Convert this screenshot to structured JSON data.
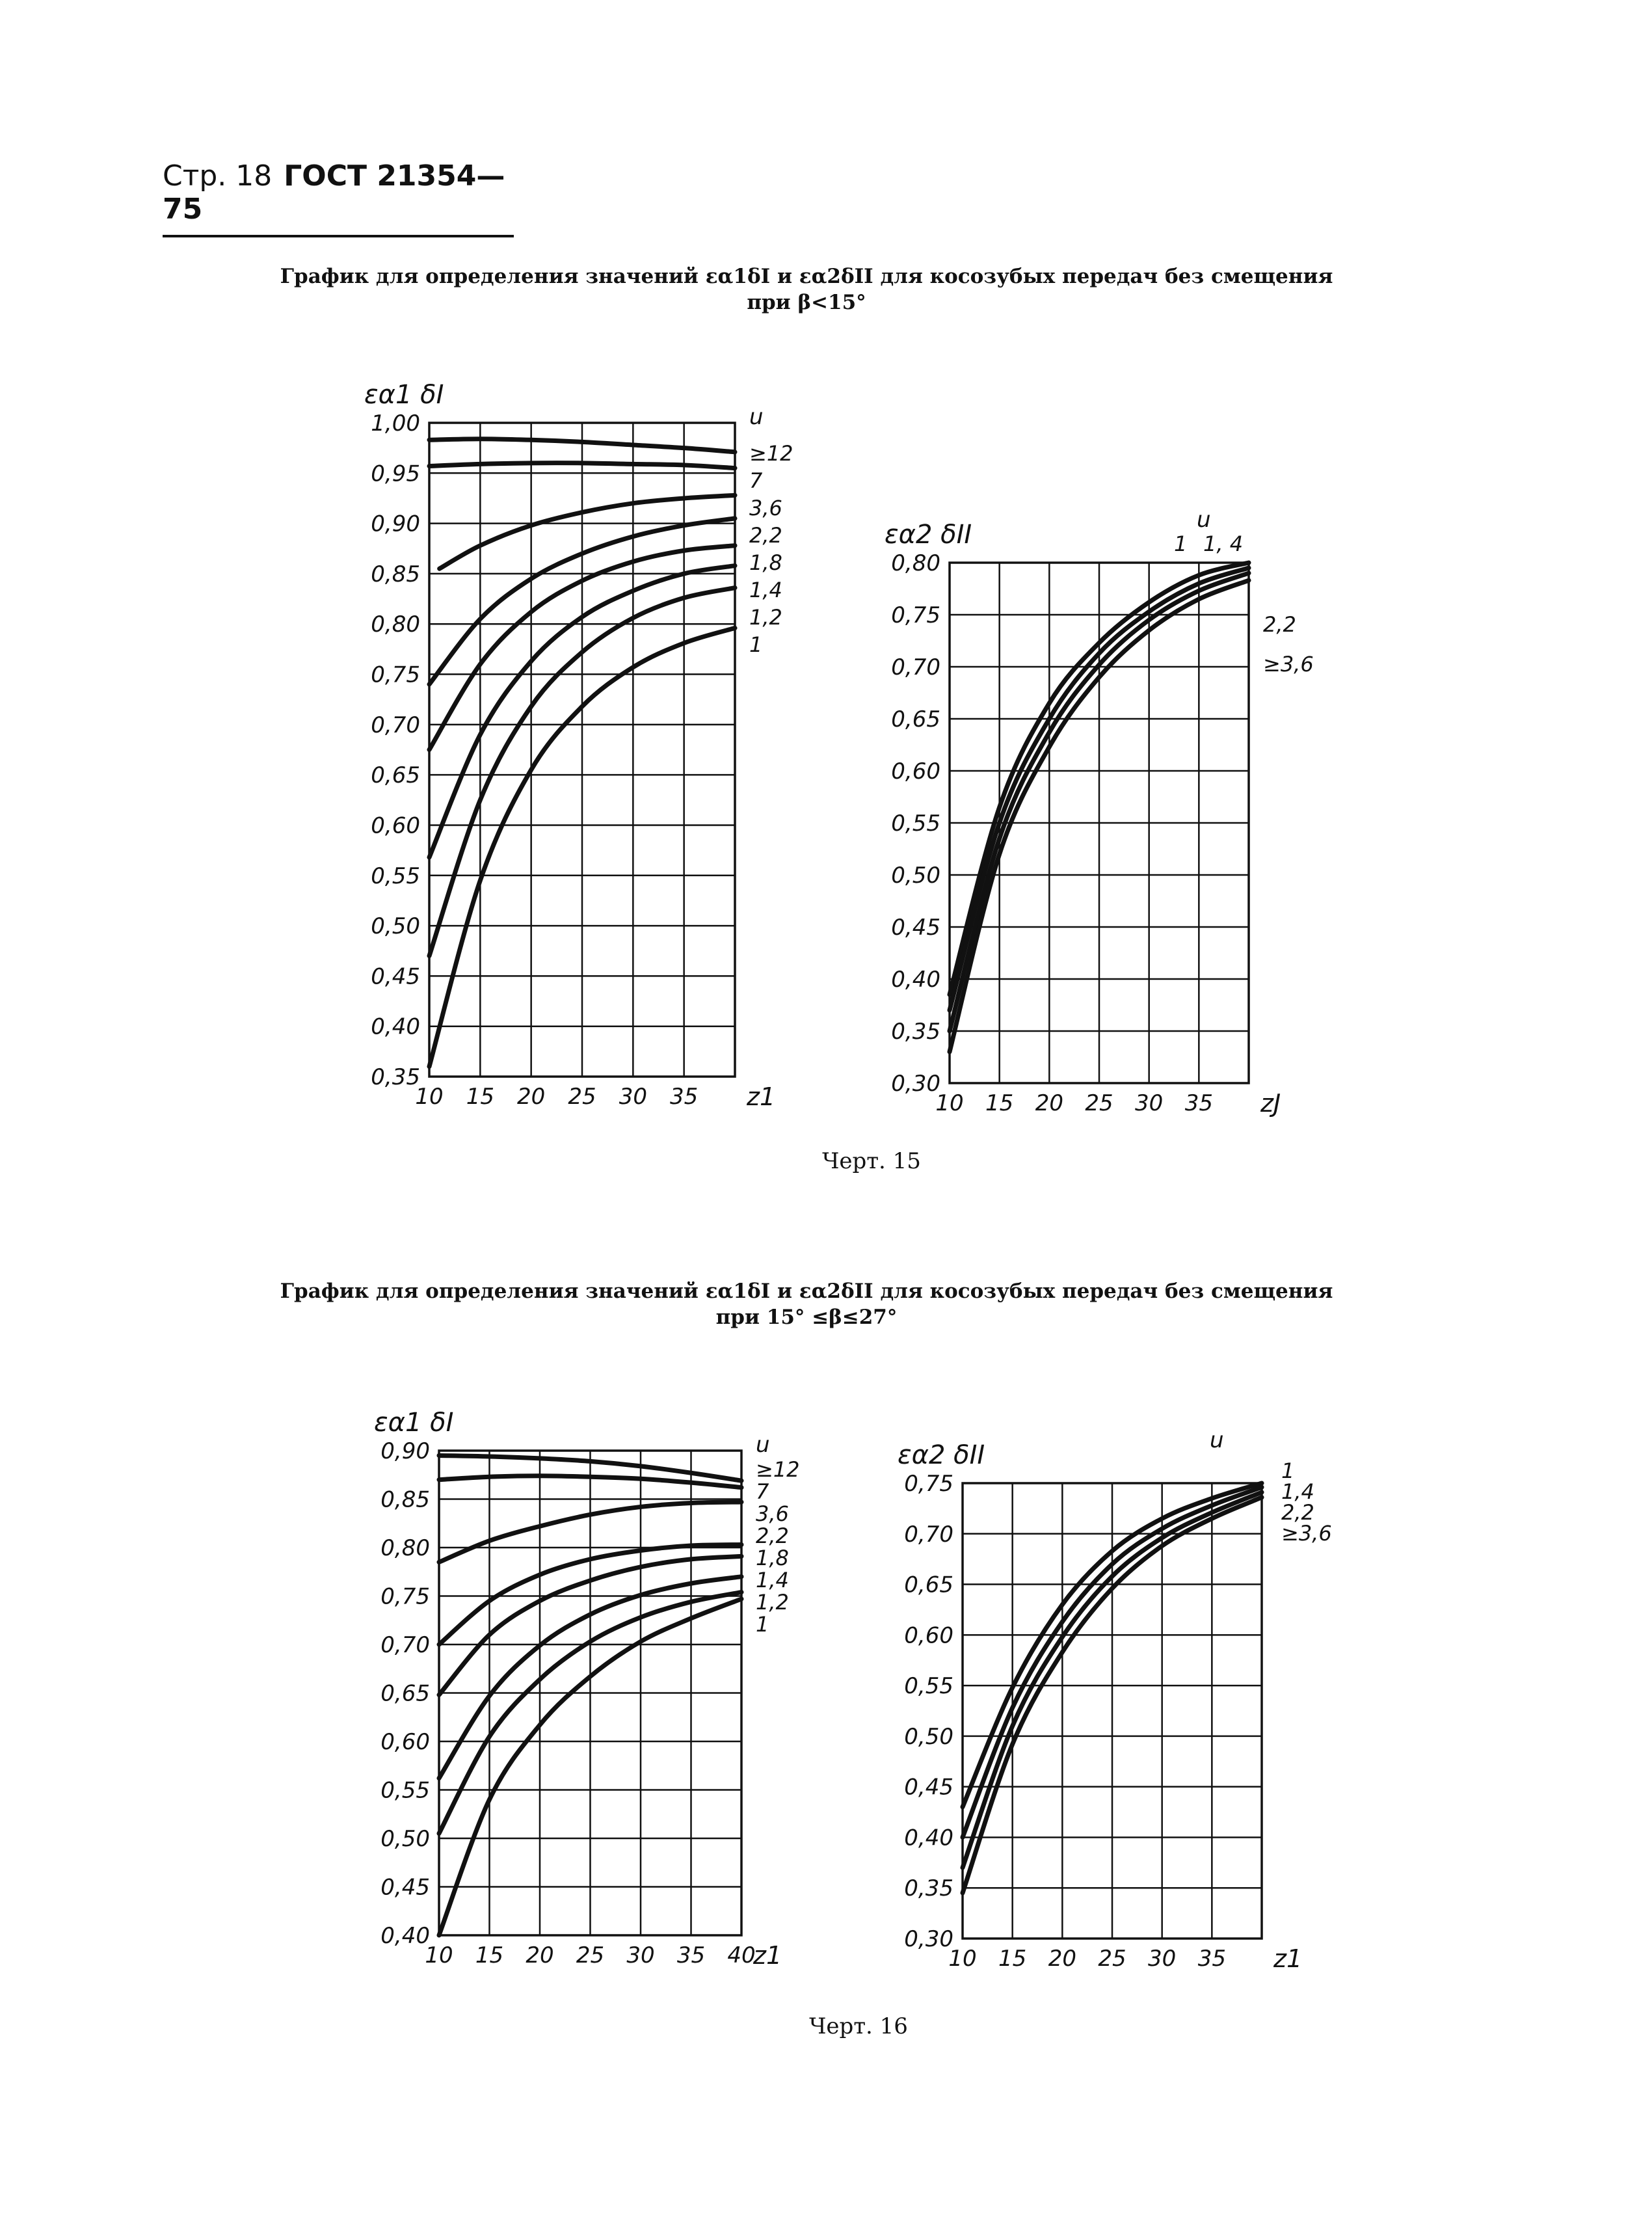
{
  "header": {
    "page_label": "Стр. 18",
    "gost_label": "ГОСТ 21354—75"
  },
  "captions": {
    "top_line1": "График для определения значений εα1δI и εα2δII для косозубых передач без смещения",
    "top_line2": "при β<15°",
    "bottom_line1": "График для определения значений εα1δI и εα2δII для косозубых передач без смещения",
    "bottom_line2": "при 15° ≤β≤27°"
  },
  "chart_labels": {
    "fig15": "Черт. 15",
    "fig16": "Черт. 16"
  },
  "chart_data": [
    {
      "id": "c15a",
      "type": "line",
      "figure": "Черт. 15",
      "ylabel": "εα1 δI",
      "xlabel": "z1",
      "legend_title": "u",
      "xlim": [
        10,
        40
      ],
      "ylim": [
        0.35,
        1.0
      ],
      "x_ticks": [
        10,
        15,
        20,
        25,
        30,
        35
      ],
      "y_ticks": [
        0.35,
        0.4,
        0.45,
        0.5,
        0.55,
        0.6,
        0.65,
        0.7,
        0.75,
        0.8,
        0.85,
        0.9,
        0.95,
        1.0
      ],
      "y_tick_labels": [
        "0,35",
        "0,40",
        "0,45",
        "0,50",
        "0,55",
        "0,60",
        "0,65",
        "0,70",
        "0,75",
        "0,80",
        "0,85",
        "0,90",
        "0,95",
        "1,00"
      ],
      "grid": true,
      "x": [
        10,
        15,
        20,
        25,
        30,
        35,
        40
      ],
      "series": [
        {
          "name": "≥12",
          "x": [
            10,
            15,
            20,
            25,
            30,
            35,
            40
          ],
          "values": [
            0.983,
            0.984,
            0.983,
            0.981,
            0.978,
            0.975,
            0.971
          ]
        },
        {
          "name": "7",
          "x": [
            10,
            15,
            20,
            25,
            30,
            35,
            40
          ],
          "values": [
            0.957,
            0.959,
            0.96,
            0.96,
            0.959,
            0.958,
            0.955
          ]
        },
        {
          "name": "3,6",
          "x": [
            11,
            15,
            20,
            25,
            30,
            35,
            40
          ],
          "values": [
            0.855,
            0.878,
            0.898,
            0.911,
            0.92,
            0.925,
            0.928
          ]
        },
        {
          "name": "2,2",
          "x": [
            10,
            15,
            20,
            25,
            30,
            35,
            40
          ],
          "values": [
            0.74,
            0.805,
            0.845,
            0.87,
            0.887,
            0.898,
            0.905
          ]
        },
        {
          "name": "1,8",
          "x": [
            10,
            15,
            20,
            25,
            30,
            35,
            40
          ],
          "values": [
            0.675,
            0.76,
            0.812,
            0.843,
            0.862,
            0.873,
            0.878
          ]
        },
        {
          "name": "1,4",
          "x": [
            10,
            15,
            20,
            25,
            30,
            35,
            40
          ],
          "values": [
            0.568,
            0.69,
            0.763,
            0.807,
            0.833,
            0.85,
            0.858
          ]
        },
        {
          "name": "1,2",
          "x": [
            10,
            15,
            20,
            25,
            30,
            35,
            40
          ],
          "values": [
            0.47,
            0.625,
            0.718,
            0.772,
            0.806,
            0.826,
            0.836
          ]
        },
        {
          "name": "1",
          "x": [
            10,
            15,
            20,
            25,
            30,
            35,
            40
          ],
          "values": [
            0.36,
            0.545,
            0.655,
            0.718,
            0.757,
            0.781,
            0.796
          ]
        }
      ]
    },
    {
      "id": "c15b",
      "type": "line",
      "figure": "Черт. 15",
      "ylabel": "εα2 δII",
      "xlabel": "zJ",
      "legend_title": "u",
      "xlim": [
        10,
        40
      ],
      "ylim": [
        0.3,
        0.8
      ],
      "x_ticks": [
        10,
        15,
        20,
        25,
        30,
        35
      ],
      "y_ticks": [
        0.3,
        0.35,
        0.4,
        0.45,
        0.5,
        0.55,
        0.6,
        0.65,
        0.7,
        0.75,
        0.8
      ],
      "y_tick_labels": [
        "0,30",
        "0,35",
        "0,40",
        "0,45",
        "0,50",
        "0,55",
        "0,60",
        "0,65",
        "0,70",
        "0,75",
        "0,80"
      ],
      "grid": true,
      "x": [
        10,
        15,
        20,
        25,
        30,
        35,
        40
      ],
      "series": [
        {
          "name": "1",
          "x": [
            10,
            15,
            20,
            25,
            30,
            35,
            40
          ],
          "values": [
            0.385,
            0.565,
            0.665,
            0.723,
            0.762,
            0.788,
            0.8
          ]
        },
        {
          "name": "1, 4",
          "x": [
            10,
            15,
            20,
            25,
            30,
            35,
            40
          ],
          "values": [
            0.37,
            0.55,
            0.65,
            0.713,
            0.753,
            0.78,
            0.795
          ]
        },
        {
          "name": "2,2",
          "x": [
            10,
            15,
            20,
            25,
            30,
            35,
            40
          ],
          "values": [
            0.35,
            0.535,
            0.637,
            0.702,
            0.745,
            0.773,
            0.79
          ]
        },
        {
          "name": "≥3,6",
          "x": [
            10,
            15,
            20,
            25,
            30,
            35,
            40
          ],
          "values": [
            0.33,
            0.52,
            0.623,
            0.69,
            0.735,
            0.765,
            0.783
          ]
        }
      ]
    },
    {
      "id": "c16a",
      "type": "line",
      "figure": "Черт. 16",
      "ylabel": "εα1 δI",
      "xlabel": "z1",
      "legend_title": "u",
      "xlim": [
        10,
        40
      ],
      "ylim": [
        0.4,
        0.9
      ],
      "x_ticks": [
        10,
        15,
        20,
        25,
        30,
        35,
        40
      ],
      "y_ticks": [
        0.4,
        0.45,
        0.5,
        0.55,
        0.6,
        0.65,
        0.7,
        0.75,
        0.8,
        0.85,
        0.9
      ],
      "y_tick_labels": [
        "0,40",
        "0,45",
        "0,50",
        "0,55",
        "0,60",
        "0,65",
        "0,70",
        "0,75",
        "0,80",
        "0,85",
        "0,90"
      ],
      "grid": true,
      "x": [
        10,
        15,
        20,
        25,
        30,
        35,
        40
      ],
      "series": [
        {
          "name": "≥12",
          "x": [
            10,
            15,
            20,
            25,
            30,
            35,
            40
          ],
          "values": [
            0.895,
            0.894,
            0.892,
            0.889,
            0.884,
            0.877,
            0.869
          ]
        },
        {
          "name": "7",
          "x": [
            10,
            15,
            20,
            25,
            30,
            35,
            40
          ],
          "values": [
            0.87,
            0.873,
            0.874,
            0.873,
            0.871,
            0.867,
            0.862
          ]
        },
        {
          "name": "3,6",
          "x": [
            10,
            15,
            20,
            25,
            30,
            35,
            40
          ],
          "values": [
            0.785,
            0.807,
            0.822,
            0.834,
            0.842,
            0.846,
            0.847
          ]
        },
        {
          "name": "2,2",
          "x": [
            10,
            15,
            20,
            25,
            30,
            35,
            40
          ],
          "values": [
            0.7,
            0.745,
            0.772,
            0.788,
            0.797,
            0.802,
            0.803
          ]
        },
        {
          "name": "1,8",
          "x": [
            10,
            15,
            20,
            25,
            30,
            35,
            40
          ],
          "values": [
            0.648,
            0.71,
            0.745,
            0.766,
            0.78,
            0.788,
            0.791
          ]
        },
        {
          "name": "1,4",
          "x": [
            10,
            15,
            20,
            25,
            30,
            35,
            40
          ],
          "values": [
            0.562,
            0.647,
            0.699,
            0.731,
            0.751,
            0.763,
            0.77
          ]
        },
        {
          "name": "1,2",
          "x": [
            10,
            15,
            20,
            25,
            30,
            35,
            40
          ],
          "values": [
            0.505,
            0.605,
            0.664,
            0.703,
            0.728,
            0.744,
            0.754
          ]
        },
        {
          "name": "1",
          "x": [
            10,
            15,
            20,
            25,
            30,
            35,
            40
          ],
          "values": [
            0.4,
            0.54,
            0.617,
            0.667,
            0.703,
            0.727,
            0.747
          ]
        }
      ]
    },
    {
      "id": "c16b",
      "type": "line",
      "figure": "Черт. 16",
      "ylabel": "εα2 δII",
      "xlabel": "z1",
      "legend_title": "u",
      "xlim": [
        10,
        40
      ],
      "ylim": [
        0.3,
        0.75
      ],
      "x_ticks": [
        10,
        15,
        20,
        25,
        30,
        35
      ],
      "y_ticks": [
        0.3,
        0.35,
        0.4,
        0.45,
        0.5,
        0.55,
        0.6,
        0.65,
        0.7,
        0.75
      ],
      "y_tick_labels": [
        "0,30",
        "0,35",
        "0,40",
        "0,45",
        "0,50",
        "0,55",
        "0,60",
        "0,65",
        "0,70",
        "0,75"
      ],
      "grid": true,
      "x": [
        10,
        15,
        20,
        25,
        30,
        35,
        40
      ],
      "series": [
        {
          "name": "1",
          "x": [
            10,
            15,
            20,
            25,
            30,
            35,
            40
          ],
          "values": [
            0.43,
            0.548,
            0.63,
            0.683,
            0.715,
            0.735,
            0.75
          ]
        },
        {
          "name": "1,4",
          "x": [
            10,
            15,
            20,
            25,
            30,
            35,
            40
          ],
          "values": [
            0.4,
            0.528,
            0.613,
            0.67,
            0.705,
            0.728,
            0.746
          ]
        },
        {
          "name": "2,2",
          "x": [
            10,
            15,
            20,
            25,
            30,
            35,
            40
          ],
          "values": [
            0.37,
            0.51,
            0.598,
            0.658,
            0.696,
            0.721,
            0.741
          ]
        },
        {
          "name": "≥3,6",
          "x": [
            10,
            15,
            20,
            25,
            30,
            35,
            40
          ],
          "values": [
            0.345,
            0.492,
            0.583,
            0.646,
            0.688,
            0.715,
            0.736
          ]
        }
      ]
    }
  ]
}
